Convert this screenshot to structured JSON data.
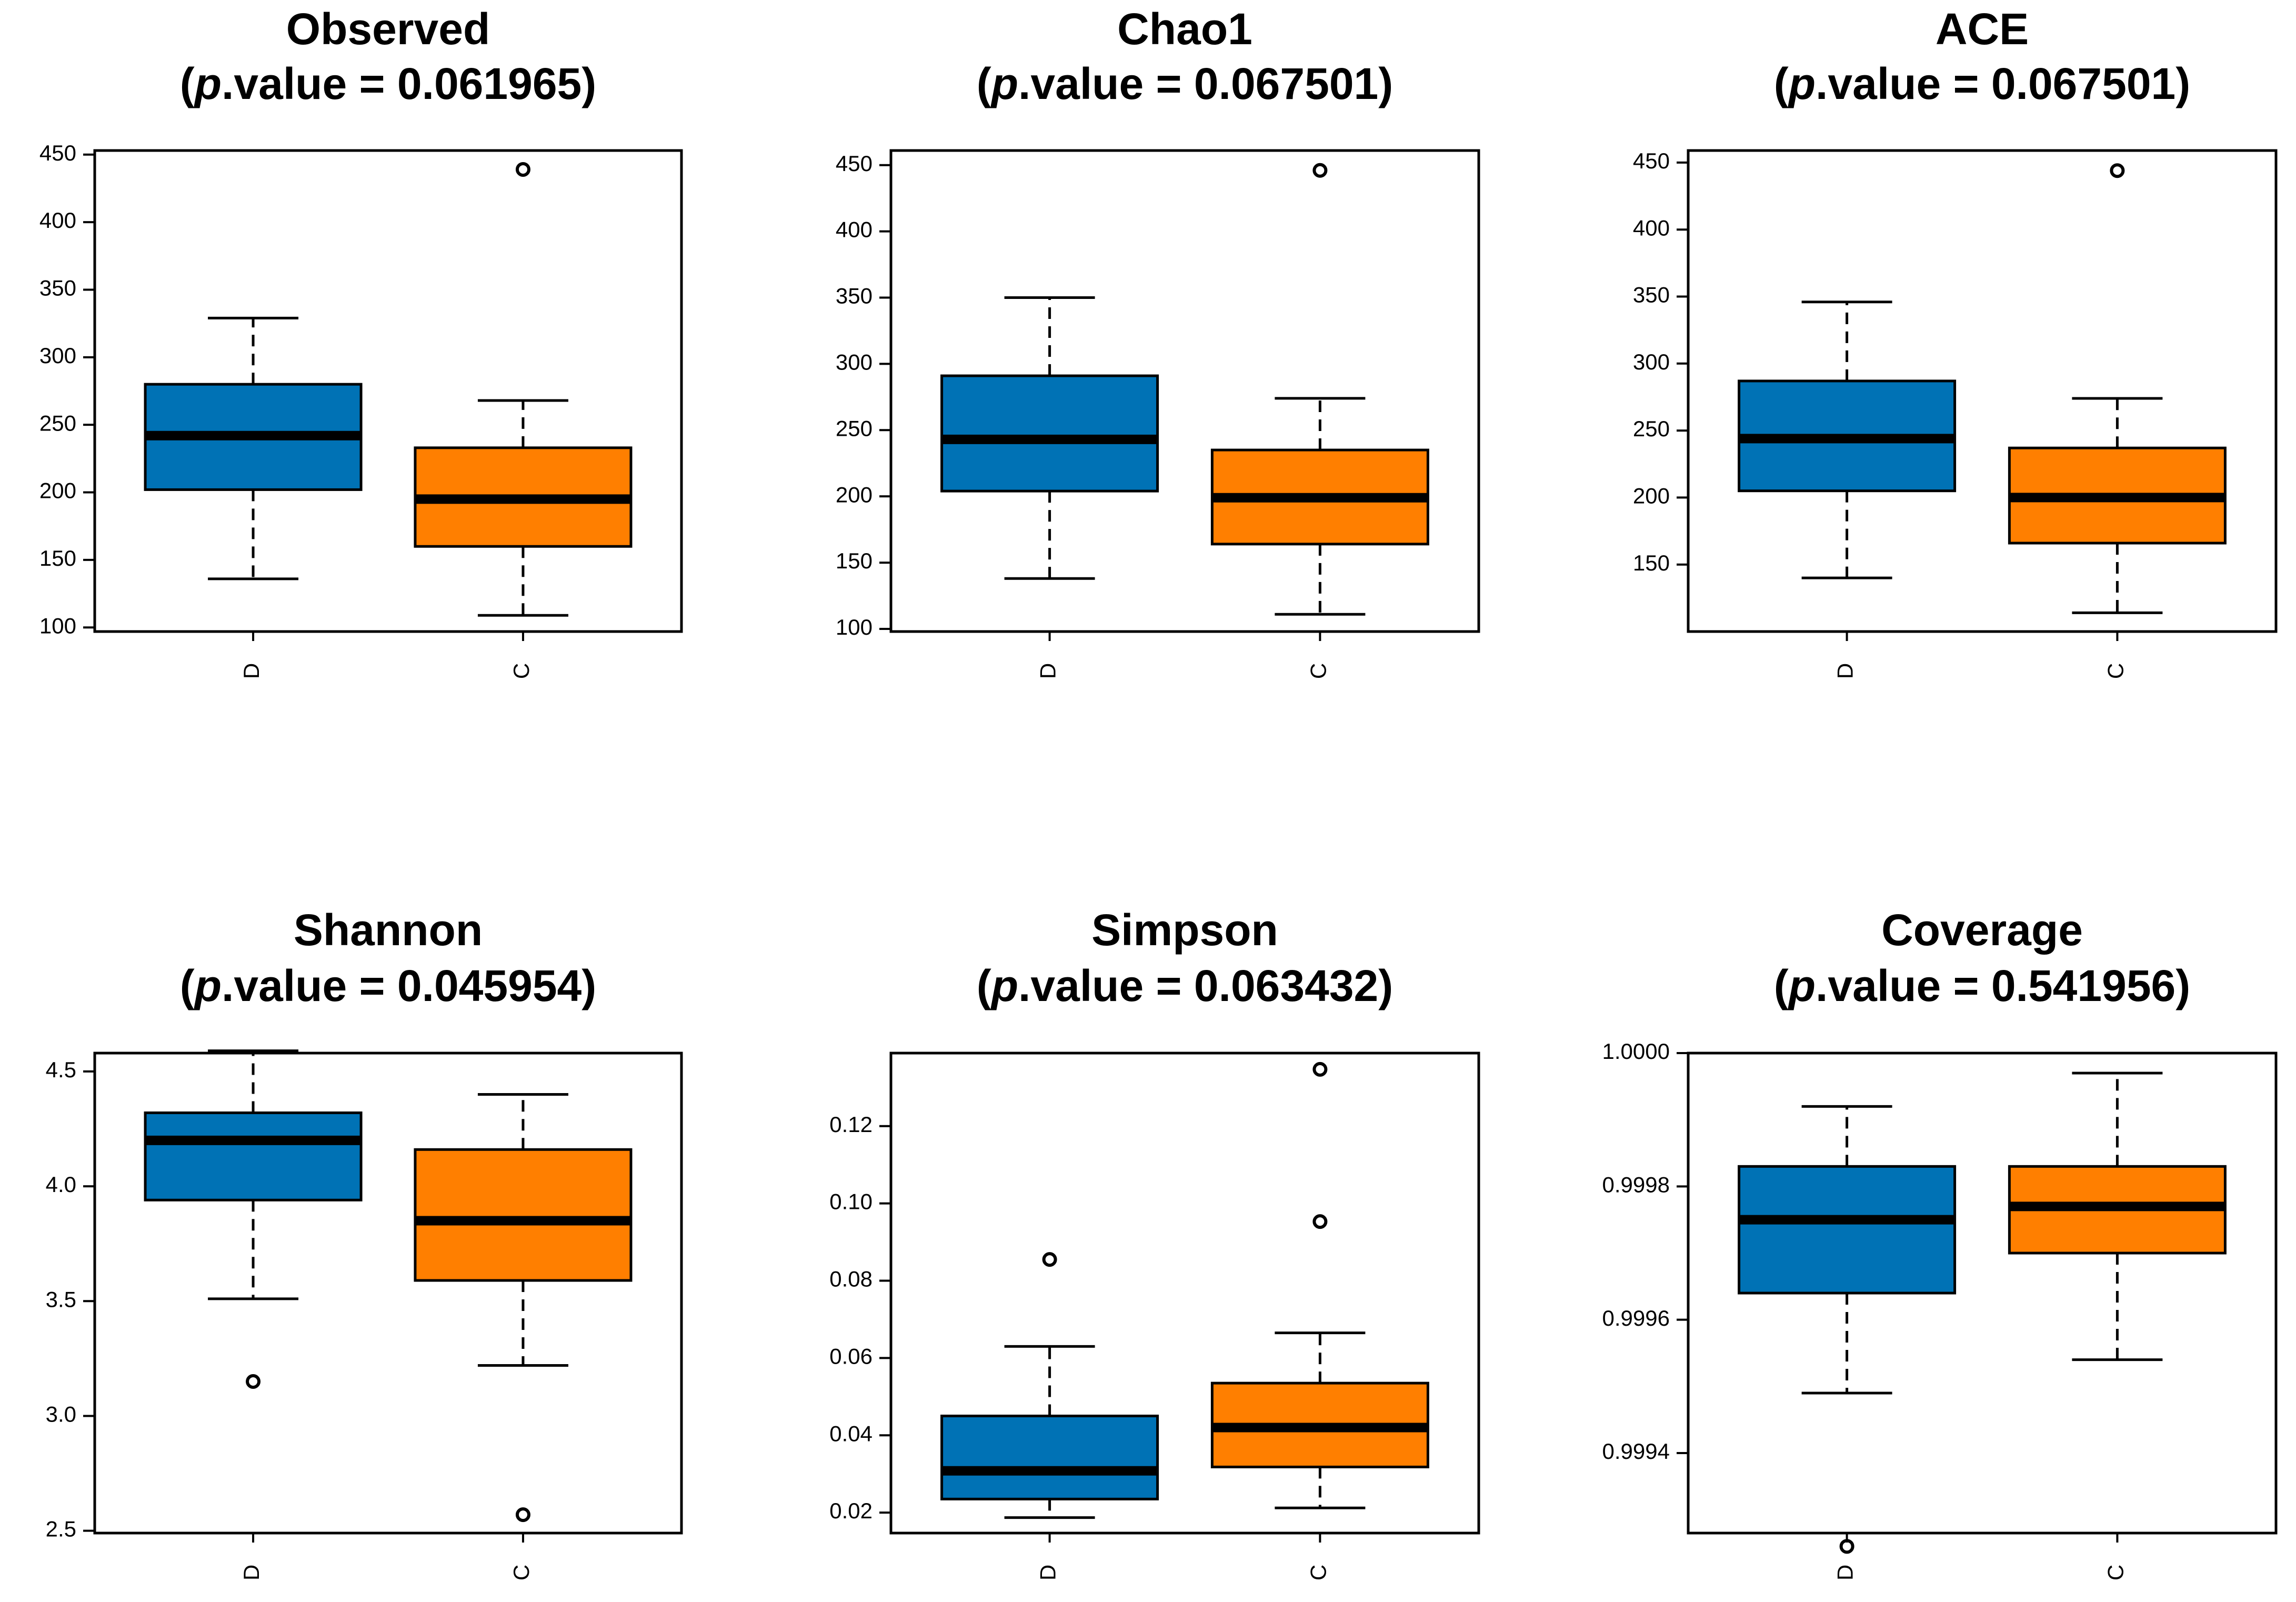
{
  "colors": {
    "D": "#0072B5",
    "C": "#FF7F00",
    "stroke": "#000000"
  },
  "chart_data": [
    {
      "type": "box",
      "title": "Observed",
      "subtitle_prefix": "(",
      "subtitle_p": "p",
      "subtitle_suffix": ".value = 0.061965)",
      "categories": [
        "D",
        "C"
      ],
      "ylim": [
        97,
        453
      ],
      "yticks": [
        100,
        150,
        200,
        250,
        300,
        350,
        400,
        450
      ],
      "ytick_labels": [
        "100",
        "150",
        "200",
        "250",
        "300",
        "350",
        "400",
        "450"
      ],
      "boxes": [
        {
          "name": "D",
          "whisker_low": 136,
          "q1": 202,
          "median": 242,
          "q3": 280,
          "whisker_high": 329,
          "outliers": []
        },
        {
          "name": "C",
          "whisker_low": 109,
          "q1": 160,
          "median": 195,
          "q3": 233,
          "whisker_high": 268,
          "outliers": [
            439
          ]
        }
      ]
    },
    {
      "type": "box",
      "title": "Chao1",
      "subtitle_prefix": "(",
      "subtitle_p": "p",
      "subtitle_suffix": ".value = 0.067501)",
      "categories": [
        "D",
        "C"
      ],
      "ylim": [
        98,
        461
      ],
      "yticks": [
        100,
        150,
        200,
        250,
        300,
        350,
        400,
        450
      ],
      "ytick_labels": [
        "100",
        "150",
        "200",
        "250",
        "300",
        "350",
        "400",
        "450"
      ],
      "boxes": [
        {
          "name": "D",
          "whisker_low": 138,
          "q1": 204,
          "median": 243,
          "q3": 291,
          "whisker_high": 350,
          "outliers": []
        },
        {
          "name": "C",
          "whisker_low": 111,
          "q1": 164,
          "median": 199,
          "q3": 235,
          "whisker_high": 274,
          "outliers": [
            446
          ]
        }
      ]
    },
    {
      "type": "box",
      "title": "ACE",
      "subtitle_prefix": "(",
      "subtitle_p": "p",
      "subtitle_suffix": ".value = 0.067501)",
      "categories": [
        "D",
        "C"
      ],
      "ylim": [
        100,
        459
      ],
      "yticks": [
        150,
        200,
        250,
        300,
        350,
        400,
        450
      ],
      "ytick_labels": [
        "150",
        "200",
        "250",
        "300",
        "350",
        "400",
        "450"
      ],
      "boxes": [
        {
          "name": "D",
          "whisker_low": 140,
          "q1": 205,
          "median": 244,
          "q3": 287,
          "whisker_high": 346,
          "outliers": []
        },
        {
          "name": "C",
          "whisker_low": 114,
          "q1": 166,
          "median": 200,
          "q3": 237,
          "whisker_high": 274,
          "outliers": [
            444
          ]
        }
      ]
    },
    {
      "type": "box",
      "title": "Shannon",
      "subtitle_prefix": "(",
      "subtitle_p": "p",
      "subtitle_suffix": ".value = 0.045954)",
      "categories": [
        "D",
        "C"
      ],
      "ylim": [
        2.49,
        4.58
      ],
      "yticks": [
        2.5,
        3.0,
        3.5,
        4.0,
        4.5
      ],
      "ytick_labels": [
        "2.5",
        "3.0",
        "3.5",
        "4.0",
        "4.5"
      ],
      "boxes": [
        {
          "name": "D",
          "whisker_low": 3.51,
          "q1": 3.94,
          "median": 4.2,
          "q3": 4.32,
          "whisker_high": 4.59,
          "outliers": [
            3.15
          ]
        },
        {
          "name": "C",
          "whisker_low": 3.22,
          "q1": 3.59,
          "median": 3.85,
          "q3": 4.16,
          "whisker_high": 4.4,
          "outliers": [
            2.57
          ]
        }
      ]
    },
    {
      "type": "box",
      "title": "Simpson",
      "subtitle_prefix": "(",
      "subtitle_p": "p",
      "subtitle_suffix": ".value = 0.063432)",
      "categories": [
        "D",
        "C"
      ],
      "ylim": [
        0.0147,
        0.1389
      ],
      "yticks": [
        0.02,
        0.04,
        0.06,
        0.08,
        0.1,
        0.12
      ],
      "ytick_labels": [
        "0.02",
        "0.04",
        "0.06",
        "0.08",
        "0.10",
        "0.12"
      ],
      "boxes": [
        {
          "name": "D",
          "whisker_low": 0.0187,
          "q1": 0.0235,
          "median": 0.0308,
          "q3": 0.045,
          "whisker_high": 0.063,
          "outliers": [
            0.0855
          ]
        },
        {
          "name": "C",
          "whisker_low": 0.0212,
          "q1": 0.0318,
          "median": 0.042,
          "q3": 0.0535,
          "whisker_high": 0.0665,
          "outliers": [
            0.0953,
            0.1347
          ]
        }
      ]
    },
    {
      "type": "box",
      "title": "Coverage",
      "subtitle_prefix": "(",
      "subtitle_p": "p",
      "subtitle_suffix": ".value = 0.541956)",
      "categories": [
        "D",
        "C"
      ],
      "ylim": [
        0.99928,
        1.0
      ],
      "yticks": [
        0.9994,
        0.9996,
        0.9998,
        1.0
      ],
      "ytick_labels": [
        "0.9994",
        "0.9996",
        "0.9998",
        "1.0000"
      ],
      "boxes": [
        {
          "name": "D",
          "whisker_low": 0.99949,
          "q1": 0.99964,
          "median": 0.99975,
          "q3": 0.99983,
          "whisker_high": 0.99992,
          "outliers": [
            0.99926
          ]
        },
        {
          "name": "C",
          "whisker_low": 0.99954,
          "q1": 0.9997,
          "median": 0.99977,
          "q3": 0.99983,
          "whisker_high": 0.99997,
          "outliers": []
        }
      ]
    }
  ]
}
